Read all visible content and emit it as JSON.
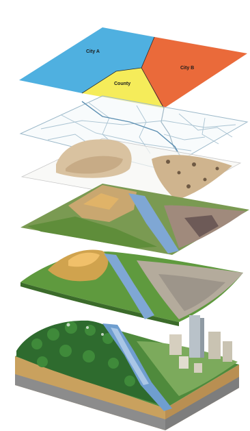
{
  "figure": {
    "layers": [
      {
        "id": "political",
        "regions": [
          {
            "label": "City A",
            "color": "#4fb0e0"
          },
          {
            "label": "County",
            "color": "#f5ec5a"
          },
          {
            "label": "City B",
            "color": "#ea6a3a"
          }
        ]
      },
      {
        "id": "roads-hydrology",
        "line_color": "#8fb5c8"
      },
      {
        "id": "elevation-soils",
        "color": "#d8c29e"
      },
      {
        "id": "land-cover",
        "color": "#7a9a52"
      },
      {
        "id": "terrain",
        "color": "#5f9a3e"
      },
      {
        "id": "real-world-block",
        "color": "#3d7a3a"
      }
    ],
    "colors": {
      "water": "#6f9ecf",
      "forest": "#2e6b2e",
      "soil": "#c9a15e",
      "rock": "#8c8c8c",
      "buildings": "#c9c3b2"
    }
  }
}
